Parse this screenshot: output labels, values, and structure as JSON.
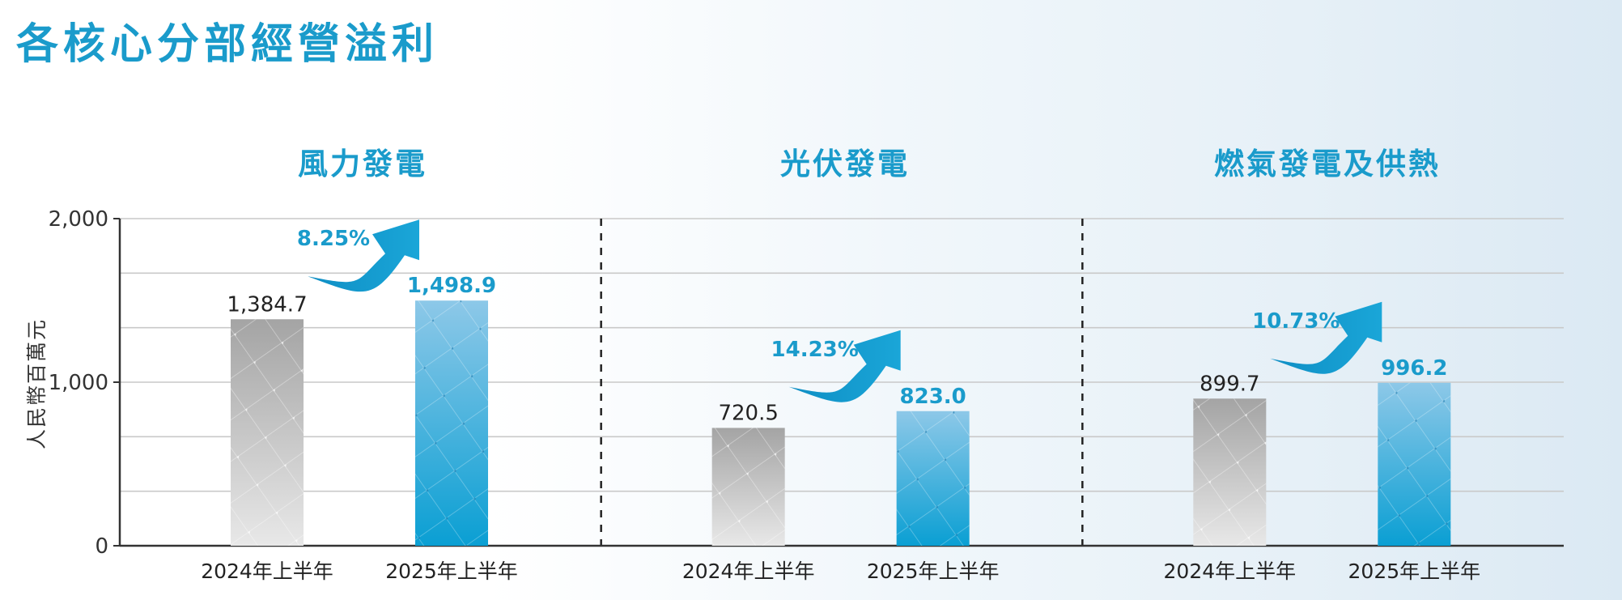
{
  "title": "各核心分部經營溢利",
  "chart_data": {
    "type": "bar",
    "ylabel": "人民幣百萬元",
    "ylim": [
      0,
      2000
    ],
    "yticks": [
      0,
      1000,
      2000
    ],
    "ytick_labels": [
      "0",
      "1,000",
      "2,000"
    ],
    "grid": true,
    "colors": {
      "prior": "#a9a9a9",
      "current": "#1a9bcb",
      "accent": "#1a9bcb"
    },
    "panels": [
      {
        "title": "風力發電",
        "categories": [
          "2024年上半年",
          "2025年上半年"
        ],
        "values": [
          1384.7,
          1498.9
        ],
        "value_labels": [
          "1,384.7",
          "1,498.9"
        ],
        "growth": "8.25%"
      },
      {
        "title": "光伏發電",
        "categories": [
          "2024年上半年",
          "2025年上半年"
        ],
        "values": [
          720.5,
          823.0
        ],
        "value_labels": [
          "720.5",
          "823.0"
        ],
        "growth": "14.23%"
      },
      {
        "title": "燃氣發電及供熱",
        "categories": [
          "2024年上半年",
          "2025年上半年"
        ],
        "values": [
          899.7,
          996.2
        ],
        "value_labels": [
          "899.7",
          "996.2"
        ],
        "growth": "10.73%"
      }
    ]
  }
}
